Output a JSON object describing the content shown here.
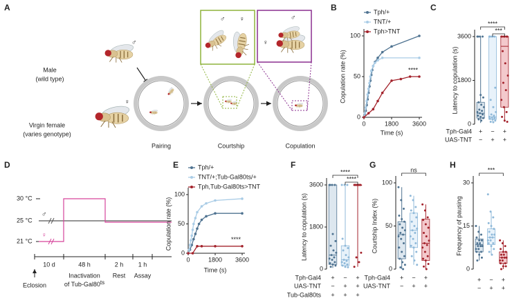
{
  "panel_a": {
    "label": "A",
    "male": [
      "Male",
      "(wild type)"
    ],
    "female": [
      "Virgin female",
      "(varies genotype)"
    ],
    "male_symbol": "♂",
    "female_symbol": "♀",
    "stages": [
      "Pairing",
      "Courtship",
      "Copulation"
    ]
  },
  "panel_d": {
    "label": "D",
    "temperatures": [
      "30 °C",
      "25 °C",
      "21 °C"
    ],
    "male_symbol": "♂",
    "female_symbol": "♀",
    "durations": [
      "10 d",
      "48 h",
      "2 h",
      "1 h"
    ],
    "eclosion": "Eclosion",
    "inactivation": [
      "Inactivation",
      "of Tub-Gal80",
      "ts"
    ],
    "rest": "Rest",
    "assay": "Assay"
  },
  "chart_data": [
    {
      "type": "line",
      "label": "B",
      "ylabel": "Copulation rate (%)",
      "xlabel": "Time (s)",
      "xlim": [
        0,
        3600
      ],
      "ylim": [
        0,
        100
      ],
      "xticks": [
        0,
        1800,
        3600
      ],
      "yticks": [
        0,
        50,
        100
      ],
      "annotation": "****",
      "series": [
        {
          "name": "Tph/+",
          "color": "#4f7391",
          "x": [
            0,
            60,
            120,
            180,
            240,
            300,
            360,
            420,
            480,
            540,
            600,
            720,
            900,
            1200,
            1800,
            3600
          ],
          "values": [
            0,
            4,
            8,
            15,
            22,
            30,
            38,
            45,
            52,
            58,
            63,
            68,
            73,
            80,
            87,
            100
          ]
        },
        {
          "name": "TNT/+",
          "color": "#a9cce6",
          "x": [
            0,
            60,
            120,
            180,
            240,
            300,
            360,
            420,
            480,
            600,
            720,
            900,
            1200,
            3600
          ],
          "values": [
            0,
            5,
            12,
            20,
            28,
            35,
            42,
            50,
            57,
            63,
            67,
            70,
            73,
            73
          ]
        },
        {
          "name": "Tph>TNT",
          "color": "#a3222b",
          "x": [
            0,
            300,
            600,
            900,
            1200,
            1800,
            2400,
            3000,
            3600
          ],
          "values": [
            0,
            5,
            10,
            20,
            30,
            45,
            47,
            50,
            50
          ]
        }
      ]
    },
    {
      "type": "box",
      "label": "C",
      "ylabel": "Latency to copulation (s)",
      "ylim": [
        0,
        3600
      ],
      "yticks": [
        0,
        1800,
        3600
      ],
      "groups": [
        {
          "color": "#4f7391",
          "fill": "#dde7ef",
          "whisker_low": 50,
          "q1": 250,
          "median": 450,
          "q3": 900,
          "whisker_high": 3600,
          "points": [
            3600,
            3600,
            3600,
            3600,
            1200,
            1100,
            900,
            800,
            700,
            600,
            550,
            500,
            450,
            400,
            350,
            300,
            250,
            200,
            150
          ]
        },
        {
          "color": "#8fb9d9",
          "fill": "#e8f2fa",
          "whisker_low": 80,
          "q1": 200,
          "median": 300,
          "q3": 3600,
          "whisker_high": 3600,
          "points": [
            3600,
            3600,
            3600,
            3600,
            3600,
            1500,
            1000,
            700,
            500,
            400,
            350,
            300,
            280,
            250,
            220,
            200,
            150,
            100,
            80
          ]
        },
        {
          "color": "#a3222b",
          "fill": "#f3c9cc",
          "whisker_low": 100,
          "q1": 700,
          "median": 3200,
          "q3": 3600,
          "whisker_high": 3600,
          "points": [
            3600,
            3600,
            3600,
            3600,
            3600,
            3600,
            3000,
            2500,
            2000,
            1700,
            1400,
            1000,
            700,
            500,
            300,
            150,
            100
          ]
        }
      ],
      "conditions": [
        {
          "label": "Tph-Gal4",
          "marks": [
            "+",
            "−",
            "+"
          ]
        },
        {
          "label": "UAS-TNT",
          "marks": [
            "−",
            "+",
            "+"
          ]
        }
      ],
      "significance": [
        {
          "from": 0,
          "to": 2,
          "label": "****"
        },
        {
          "from": 1,
          "to": 2,
          "label": "***"
        }
      ]
    },
    {
      "type": "line",
      "label": "E",
      "ylabel": "Copulation rate (%)",
      "xlabel": "Time (s)",
      "xlim": [
        0,
        3600
      ],
      "ylim": [
        0,
        100
      ],
      "xticks": [
        0,
        1800,
        3600
      ],
      "yticks": [
        0,
        50,
        100
      ],
      "annotation": "****",
      "series": [
        {
          "name": "Tph/+",
          "color": "#4f7391",
          "x": [
            0,
            120,
            240,
            360,
            480,
            600,
            720,
            900,
            1200,
            1800,
            3600
          ],
          "values": [
            0,
            6,
            14,
            24,
            33,
            42,
            50,
            57,
            63,
            68,
            68
          ]
        },
        {
          "name": "TNT/+;Tub-Gal80ts/+",
          "color": "#a9cce6",
          "x": [
            0,
            60,
            120,
            180,
            240,
            300,
            360,
            480,
            600,
            900,
            1200,
            1800,
            3600
          ],
          "values": [
            0,
            6,
            14,
            22,
            30,
            40,
            50,
            60,
            70,
            80,
            85,
            90,
            93
          ]
        },
        {
          "name": "Tph,Tub-Gal80ts>TNT",
          "color": "#a3222b",
          "x": [
            0,
            300,
            600,
            900,
            1800,
            3600
          ],
          "values": [
            0,
            0,
            12,
            12,
            12,
            12
          ]
        }
      ]
    },
    {
      "type": "box",
      "label": "F",
      "ylabel": "Latency to copulation (s)",
      "ylim": [
        0,
        3600
      ],
      "yticks": [
        0,
        1800,
        3600
      ],
      "groups": [
        {
          "color": "#4f7391",
          "fill": "#dde7ef",
          "whisker_low": 50,
          "q1": 200,
          "median": 600,
          "q3": 3600,
          "whisker_high": 3600,
          "points": [
            3600,
            3600,
            3600,
            3600,
            1500,
            1200,
            1000,
            800,
            700,
            600,
            500,
            450,
            400,
            300,
            250,
            200,
            150,
            100
          ]
        },
        {
          "color": "#8fb9d9",
          "fill": "#e8f2fa",
          "whisker_low": 50,
          "q1": 150,
          "median": 400,
          "q3": 1000,
          "whisker_high": 3600,
          "points": [
            3600,
            3600,
            3600,
            1300,
            1000,
            900,
            800,
            600,
            500,
            400,
            350,
            300,
            250,
            200,
            150,
            100,
            80
          ]
        },
        {
          "color": "#a3222b",
          "fill": "#f3c9cc",
          "whisker_low": 100,
          "q1": 3600,
          "median": 3600,
          "q3": 3600,
          "whisker_high": 3600,
          "points": [
            3600,
            3600,
            3600,
            3600,
            3600,
            3600,
            3600,
            3600,
            700,
            500,
            300,
            100
          ]
        }
      ],
      "conditions": [
        {
          "label": "Tph-Gal4",
          "marks": [
            "+",
            "−",
            "+"
          ]
        },
        {
          "label": "UAS-TNT",
          "marks": [
            "−",
            "+",
            "+"
          ]
        },
        {
          "label": "Tub-Gal80ts",
          "marks": [
            "+",
            "+",
            "+"
          ]
        }
      ],
      "significance": [
        {
          "from": 0,
          "to": 2,
          "label": "****"
        },
        {
          "from": 1,
          "to": 2,
          "label": "****"
        }
      ]
    },
    {
      "type": "box",
      "label": "G",
      "ylabel": "Courtship Index (%)",
      "ylim": [
        0,
        100
      ],
      "yticks": [
        0,
        50,
        100
      ],
      "groups": [
        {
          "color": "#4f7391",
          "fill": "#dde7ef",
          "whisker_low": 0,
          "q1": 12,
          "median": 40,
          "q3": 55,
          "whisker_high": 95,
          "points": [
            95,
            80,
            70,
            62,
            58,
            55,
            52,
            48,
            45,
            42,
            40,
            38,
            35,
            30,
            25,
            20,
            15,
            12,
            8,
            5,
            2,
            0
          ]
        },
        {
          "color": "#8fb9d9",
          "fill": "#e8f2fa",
          "whisker_low": 5,
          "q1": 25,
          "median": 45,
          "q3": 65,
          "whisker_high": 85,
          "points": [
            85,
            80,
            72,
            68,
            65,
            60,
            55,
            50,
            47,
            45,
            42,
            38,
            35,
            30,
            27,
            25,
            20,
            15,
            10,
            5
          ]
        },
        {
          "color": "#a3222b",
          "fill": "#f3c9cc",
          "whisker_low": 0,
          "q1": 10,
          "median": 30,
          "q3": 58,
          "whisker_high": 75,
          "points": [
            75,
            68,
            60,
            57,
            52,
            48,
            42,
            38,
            33,
            30,
            28,
            25,
            20,
            15,
            12,
            10,
            6,
            3,
            0
          ]
        }
      ],
      "conditions": [
        {
          "label": "Tph-Gal4",
          "marks": [
            "+",
            "−",
            "+"
          ]
        },
        {
          "label": "UAS-TNT",
          "marks": [
            "−",
            "+",
            "+"
          ]
        }
      ],
      "significance": [
        {
          "from": 0,
          "to": 2,
          "label": "ns"
        }
      ]
    },
    {
      "type": "box",
      "label": "H",
      "ylabel": "Frequency of pausing",
      "ylim": [
        0,
        30
      ],
      "yticks": [
        0,
        15,
        30
      ],
      "groups": [
        {
          "color": "#4f7391",
          "fill": "#dde7ef",
          "whisker_low": 3,
          "q1": 6,
          "median": 8.5,
          "q3": 10.5,
          "whisker_high": 15,
          "points": [
            15,
            13,
            12,
            11,
            10,
            10,
            9,
            9,
            8,
            8,
            8,
            7,
            7,
            6,
            6,
            5,
            4,
            3
          ]
        },
        {
          "color": "#8fb9d9",
          "fill": "#e8f2fa",
          "whisker_low": 5,
          "q1": 8.5,
          "median": 11,
          "q3": 14,
          "whisker_high": 20,
          "points": [
            26,
            20,
            18,
            16,
            15,
            14,
            13,
            12,
            12,
            11,
            11,
            10,
            10,
            9,
            9,
            8,
            7,
            6,
            5
          ]
        },
        {
          "color": "#a3222b",
          "fill": "#f3c9cc",
          "whisker_low": 0,
          "q1": 2,
          "median": 4,
          "q3": 6,
          "whisker_high": 10,
          "points": [
            10,
            9,
            8,
            7,
            6,
            6,
            5,
            5,
            4,
            4,
            4,
            3,
            3,
            2,
            2,
            1,
            1,
            0
          ]
        }
      ],
      "conditions": [
        {
          "label": null,
          "marks": [
            "+",
            "−",
            "+"
          ]
        },
        {
          "label": null,
          "marks": [
            "−",
            "+",
            "+"
          ]
        }
      ],
      "significance": [
        {
          "from": 0,
          "to": 2,
          "label": "***"
        }
      ]
    }
  ]
}
